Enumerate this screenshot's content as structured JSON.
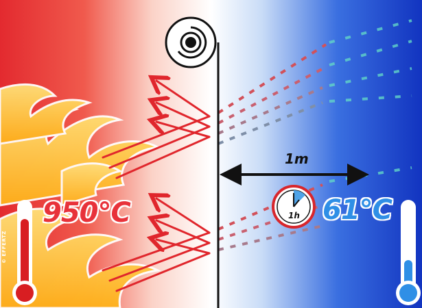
{
  "hot_side": {
    "temperature": "950°C",
    "color": "#e8323a"
  },
  "cold_side": {
    "temperature": "61°C",
    "color": "#2f8fe6"
  },
  "distance_label": "1m",
  "time_label": "1h",
  "credit": "© EFFERTZ",
  "icons": [
    "flame-icon",
    "thermometer-hot-icon",
    "thermometer-cold-icon",
    "clock-icon",
    "fabric-roll-icon"
  ]
}
